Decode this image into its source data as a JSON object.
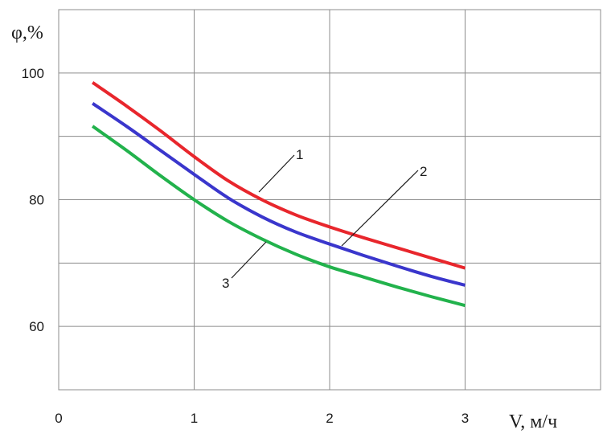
{
  "chart_data": {
    "type": "line",
    "title": "",
    "xlabel": "V, м/ч",
    "ylabel": "φ,%",
    "xlim": [
      0,
      4
    ],
    "ylim": [
      50,
      110
    ],
    "x_ticks": [
      0,
      1,
      2,
      3
    ],
    "x_tick_labels": [
      "0",
      "1",
      "2",
      "3"
    ],
    "y_ticks": [
      60,
      80,
      100
    ],
    "y_tick_labels": [
      "60",
      "80",
      "100"
    ],
    "grid": true,
    "grid_x_step": 1,
    "grid_y_step": 10,
    "x": [
      0.25,
      0.5,
      0.75,
      1.0,
      1.25,
      1.5,
      1.75,
      2.0,
      2.25,
      2.5,
      2.75,
      3.0
    ],
    "series": [
      {
        "name": "1",
        "color": "#e8262c",
        "values": [
          98.5,
          94.8,
          90.9,
          86.8,
          83.0,
          80.0,
          77.6,
          75.7,
          74.0,
          72.4,
          70.8,
          69.2
        ]
      },
      {
        "name": "2",
        "color": "#3a36cc",
        "values": [
          95.2,
          91.6,
          87.8,
          84.0,
          80.3,
          77.3,
          74.9,
          73.0,
          71.2,
          69.5,
          67.9,
          66.5
        ]
      },
      {
        "name": "3",
        "color": "#22b24c",
        "values": [
          91.6,
          87.8,
          83.8,
          80.0,
          76.6,
          73.8,
          71.4,
          69.4,
          67.8,
          66.2,
          64.7,
          63.3
        ]
      }
    ],
    "annotations": [
      {
        "text": "1",
        "series": "1"
      },
      {
        "text": "2",
        "series": "2"
      },
      {
        "text": "3",
        "series": "3"
      }
    ]
  }
}
